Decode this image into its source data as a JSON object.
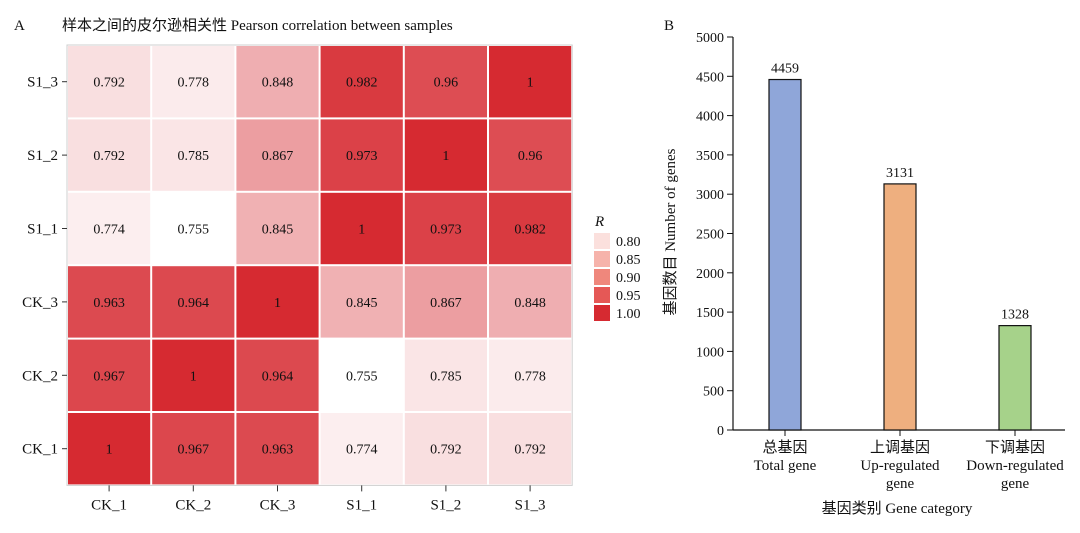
{
  "chart_data": [
    {
      "panel": "A",
      "type": "heatmap",
      "title": "样本之间的皮尔逊相关性 Pearson correlation between samples",
      "x_labels": [
        "CK_1",
        "CK_2",
        "CK_3",
        "S1_1",
        "S1_2",
        "S1_3"
      ],
      "y_labels": [
        "S1_3",
        "S1_2",
        "S1_1",
        "CK_3",
        "CK_2",
        "CK_1"
      ],
      "values": [
        [
          0.792,
          0.778,
          0.848,
          0.982,
          0.96,
          1
        ],
        [
          0.792,
          0.785,
          0.867,
          0.973,
          1,
          0.96
        ],
        [
          0.774,
          0.755,
          0.845,
          1,
          0.973,
          0.982
        ],
        [
          0.963,
          0.964,
          1,
          0.845,
          0.867,
          0.848
        ],
        [
          0.967,
          1,
          0.964,
          0.755,
          0.785,
          0.778
        ],
        [
          1,
          0.967,
          0.963,
          0.774,
          0.792,
          0.792
        ]
      ],
      "legend": {
        "title": "R",
        "ticks": [
          "0.80",
          "0.85",
          "0.90",
          "0.95",
          "1.00"
        ],
        "tick_values": [
          0.8,
          0.85,
          0.9,
          0.95,
          1.0
        ],
        "colors": [
          "#fbe0dd",
          "#f6b3ab",
          "#ef877c",
          "#e55856",
          "#d62a31"
        ]
      },
      "color_range": [
        0.755,
        1.0
      ],
      "color_low": "#ffffff",
      "color_high": "#d62a31"
    },
    {
      "panel": "B",
      "type": "bar",
      "categories": [
        [
          "总基因",
          "Total gene"
        ],
        [
          "上调基因",
          "Up-regulated",
          "gene"
        ],
        [
          "下调基因",
          "Down-regulated",
          "gene"
        ]
      ],
      "values": [
        4459,
        3131,
        1328
      ],
      "colors": [
        "#8fa6d9",
        "#eeaf7f",
        "#a6d28a"
      ],
      "xlabel": "基因类别 Gene category",
      "ylabel": "基因数目 Number of genes",
      "ylim": [
        0,
        5000
      ],
      "yticks": [
        0,
        500,
        1000,
        1500,
        2000,
        2500,
        3000,
        3500,
        4000,
        4500,
        5000
      ]
    }
  ]
}
